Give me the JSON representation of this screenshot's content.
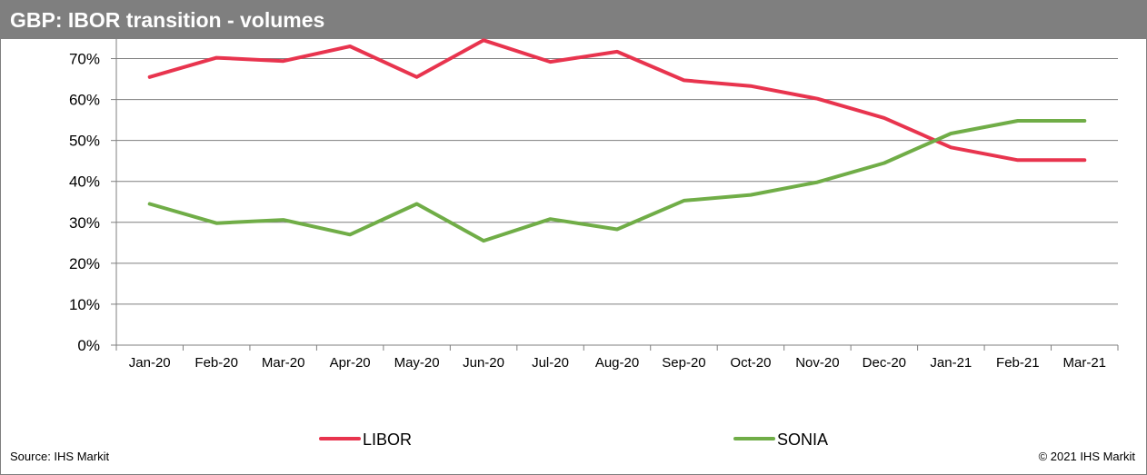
{
  "header": {
    "title": "GBP: IBOR transition - volumes"
  },
  "footer": {
    "source": "Source: IHS Markit",
    "copyright": "© 2021 IHS Markit"
  },
  "colors": {
    "header_bg": "#7f7f7f",
    "libor": "#e8344e",
    "sonia": "#70ad47",
    "grid": "#7f7f7f"
  },
  "chart_data": {
    "type": "line",
    "title": "GBP: IBOR transition - volumes",
    "xlabel": "",
    "ylabel": "",
    "categories": [
      "Jan-20",
      "Feb-20",
      "Mar-20",
      "Apr-20",
      "May-20",
      "Jun-20",
      "Jul-20",
      "Aug-20",
      "Sep-20",
      "Oct-20",
      "Nov-20",
      "Dec-20",
      "Jan-21",
      "Feb-21",
      "Mar-21"
    ],
    "y_ticks": [
      "0%",
      "10%",
      "20%",
      "30%",
      "40%",
      "50%",
      "60%",
      "70%"
    ],
    "ylim": [
      0,
      75
    ],
    "grid": true,
    "legend_position": "bottom",
    "series": [
      {
        "name": "LIBOR",
        "color": "#e8344e",
        "values": [
          65.5,
          70.2,
          69.4,
          73.0,
          65.5,
          74.5,
          69.2,
          71.7,
          64.7,
          63.3,
          60.2,
          55.5,
          48.3,
          45.2,
          45.2
        ]
      },
      {
        "name": "SONIA",
        "color": "#70ad47",
        "values": [
          34.5,
          29.8,
          30.6,
          27.0,
          34.5,
          25.5,
          30.8,
          28.3,
          35.3,
          36.7,
          39.8,
          44.5,
          51.7,
          54.8,
          54.8
        ]
      }
    ]
  }
}
